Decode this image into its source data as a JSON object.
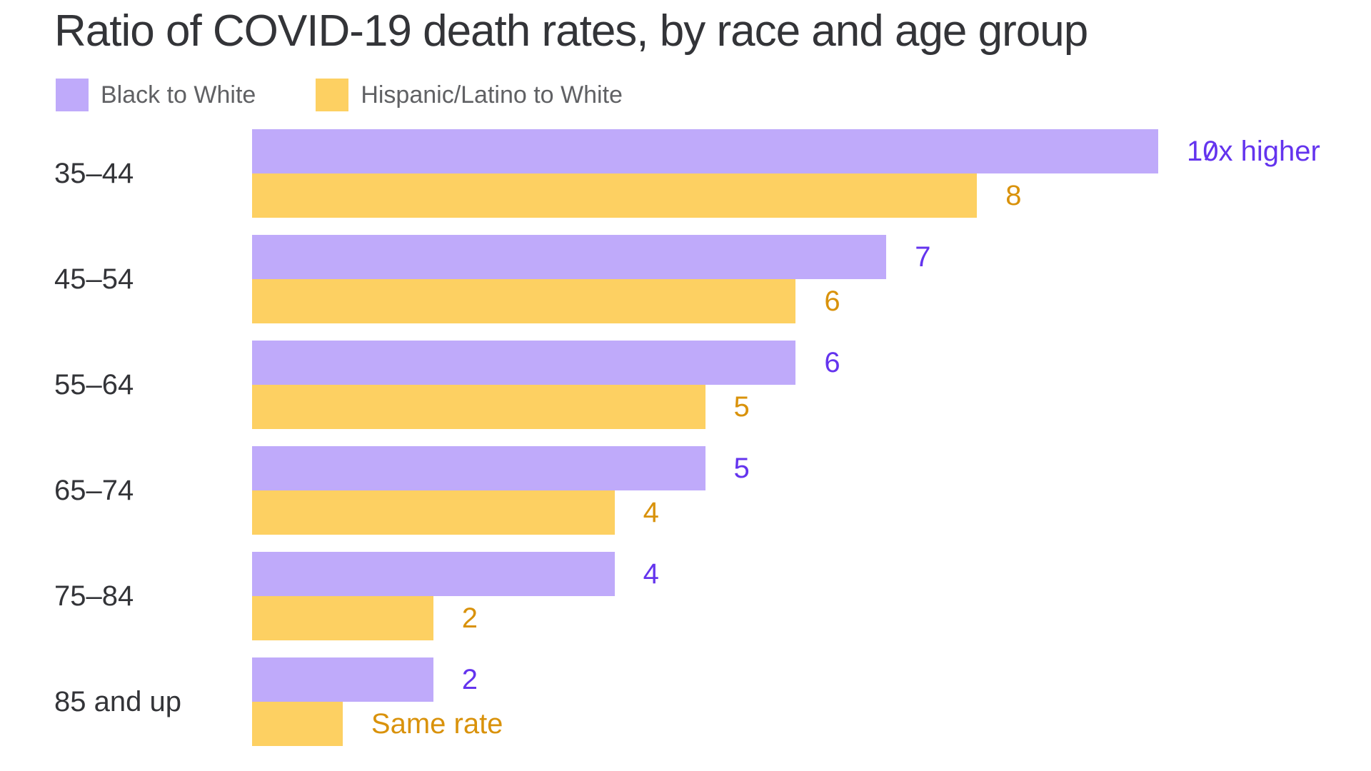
{
  "title": "Ratio of COVID-19 death rates, by race and age group",
  "colors": {
    "background": "#ffffff",
    "title_text": "#333438",
    "category_text": "#333438",
    "legend_text": "#606164",
    "black_to_white_bar": "#bfaafa",
    "hispanic_to_white_bar": "#fdd062",
    "black_to_white_label": "#6434ee",
    "hispanic_to_white_label": "#d9920b"
  },
  "legend": [
    {
      "label": "Black to White",
      "color": "#bfaafa"
    },
    {
      "label": "Hispanic/Latino to White",
      "color": "#fdd062"
    }
  ],
  "chart_data": {
    "type": "bar",
    "orientation": "horizontal",
    "title": "Ratio of COVID-19 death rates, by race and age group",
    "categories": [
      "35–44",
      "45–54",
      "55–64",
      "65–74",
      "75–84",
      "85 and up"
    ],
    "series": [
      {
        "name": "Black to White",
        "color": "#bfaafa",
        "label_color": "#6434ee",
        "values": [
          10,
          7,
          6,
          5,
          4,
          2
        ],
        "value_labels": [
          {
            "parts": [
              {
                "t": "1"
              },
              {
                "t": "0",
                "slashed": true
              },
              {
                "t": "x higher"
              }
            ]
          },
          "7",
          "6",
          "5",
          "4",
          "2"
        ]
      },
      {
        "name": "Hispanic/Latino to White",
        "color": "#fdd062",
        "label_color": "#d9920b",
        "values": [
          8,
          6,
          5,
          4,
          2,
          1
        ],
        "value_labels": [
          "8",
          "6",
          "5",
          "4",
          "2",
          "Same rate"
        ]
      }
    ],
    "xlim": [
      0,
      10
    ],
    "grid": false,
    "axis_ticks": false,
    "legend_position": "top-left"
  }
}
